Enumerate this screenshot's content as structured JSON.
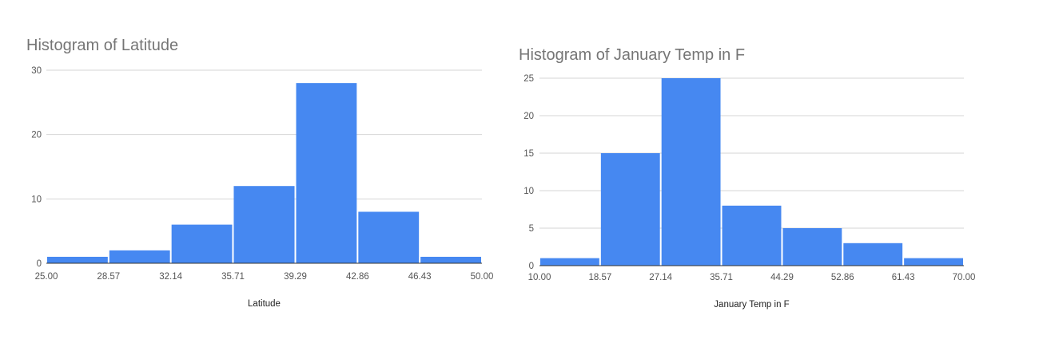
{
  "chart_data": [
    {
      "type": "bar",
      "title": "Histogram of Latitude",
      "xlabel": "Latitude",
      "ylabel": "",
      "ylim": [
        0,
        30
      ],
      "yticks": [
        "0",
        "10",
        "20",
        "30"
      ],
      "xticks": [
        "25.00",
        "28.57",
        "32.14",
        "35.71",
        "39.29",
        "42.86",
        "46.43",
        "50.00"
      ],
      "bin_edges": [
        25.0,
        28.57,
        32.14,
        35.71,
        39.29,
        42.86,
        46.43,
        50.0
      ],
      "values": [
        1,
        2,
        6,
        12,
        28,
        8,
        1
      ],
      "grid": true,
      "legend": "none",
      "bar_color": "#4688f1"
    },
    {
      "type": "bar",
      "title": "Histogram of January Temp in F",
      "xlabel": "January Temp in F",
      "ylabel": "",
      "ylim": [
        0,
        25
      ],
      "yticks": [
        "0",
        "5",
        "10",
        "15",
        "20",
        "25"
      ],
      "xticks": [
        "10.00",
        "18.57",
        "27.14",
        "35.71",
        "44.29",
        "52.86",
        "61.43",
        "70.00"
      ],
      "bin_edges": [
        10.0,
        18.57,
        27.14,
        35.71,
        44.29,
        52.86,
        61.43,
        70.0
      ],
      "values": [
        1,
        15,
        25,
        8,
        5,
        3,
        1
      ],
      "grid": true,
      "legend": "none",
      "bar_color": "#4688f1"
    }
  ]
}
